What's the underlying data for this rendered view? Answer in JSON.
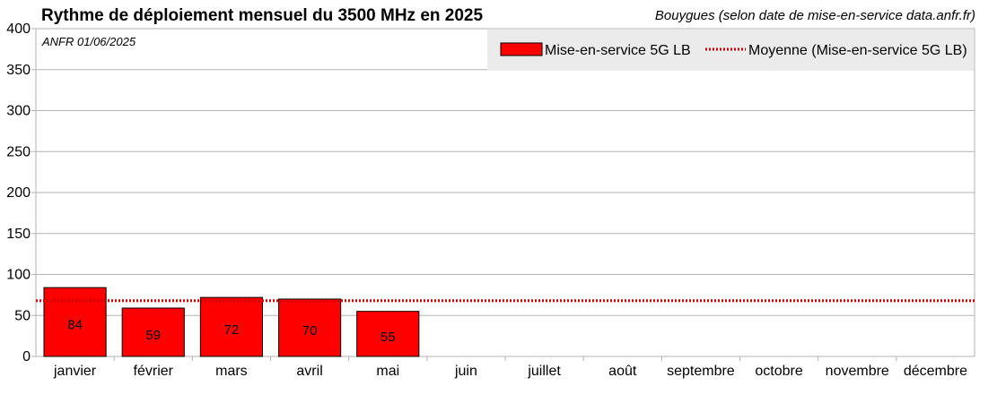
{
  "chart_data": {
    "type": "bar",
    "title": "Rythme de déploiement mensuel du 3500 MHz en 2025",
    "subtitle": "Bouygues (selon date de mise-en-service data.anfr.fr)",
    "annotation": "ANFR 01/06/2025",
    "categories": [
      "janvier",
      "février",
      "mars",
      "avril",
      "mai",
      "juin",
      "juillet",
      "août",
      "septembre",
      "octobre",
      "novembre",
      "décembre"
    ],
    "series": [
      {
        "name": "Mise-en-service 5G LB",
        "values": [
          84,
          59,
          72,
          70,
          55,
          null,
          null,
          null,
          null,
          null,
          null,
          null
        ],
        "color": "#ff0000"
      }
    ],
    "average": {
      "name": "Moyenne (Mise-en-service 5G LB)",
      "value": 68,
      "color": "#cc0000"
    },
    "ylim": [
      0,
      400
    ],
    "yticks": [
      0,
      50,
      100,
      150,
      200,
      250,
      300,
      350,
      400
    ],
    "grid": true,
    "legend_position": "top-right"
  }
}
